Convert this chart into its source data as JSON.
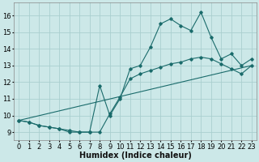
{
  "background_color": "#cce8e8",
  "grid_color": "#aacfcf",
  "line_color": "#1a6b6b",
  "marker_color": "#1a6b6b",
  "xlabel": "Humidex (Indice chaleur)",
  "xlabel_fontsize": 7,
  "tick_fontsize": 6,
  "xlim": [
    -0.5,
    23.5
  ],
  "ylim": [
    8.5,
    16.8
  ],
  "yticks": [
    9,
    10,
    11,
    12,
    13,
    14,
    15,
    16
  ],
  "xticks": [
    0,
    1,
    2,
    3,
    4,
    5,
    6,
    7,
    8,
    9,
    10,
    11,
    12,
    13,
    14,
    15,
    16,
    17,
    18,
    19,
    20,
    21,
    22,
    23
  ],
  "series1_x": [
    0,
    1,
    2,
    3,
    4,
    5,
    6,
    7,
    8,
    9,
    10,
    11,
    12,
    13,
    14,
    15,
    16,
    17,
    18,
    19,
    20,
    21,
    22,
    23
  ],
  "series1_y": [
    9.7,
    9.6,
    9.4,
    9.3,
    9.2,
    9.0,
    9.0,
    9.0,
    11.8,
    10.0,
    11.0,
    12.8,
    13.0,
    14.1,
    15.5,
    15.8,
    15.4,
    15.1,
    16.2,
    14.7,
    13.4,
    13.7,
    13.0,
    13.4
  ],
  "series2_x": [
    0,
    1,
    2,
    3,
    4,
    5,
    6,
    7,
    8,
    9,
    10,
    11,
    12,
    13,
    14,
    15,
    16,
    17,
    18,
    19,
    20,
    21,
    22,
    23
  ],
  "series2_y": [
    9.7,
    9.6,
    9.4,
    9.3,
    9.2,
    9.1,
    9.0,
    9.0,
    9.0,
    10.1,
    11.1,
    12.2,
    12.5,
    12.7,
    12.9,
    13.1,
    13.2,
    13.4,
    13.5,
    13.4,
    13.1,
    12.8,
    12.5,
    13.0
  ],
  "series3_x": [
    0,
    23
  ],
  "series3_y": [
    9.7,
    13.0
  ]
}
